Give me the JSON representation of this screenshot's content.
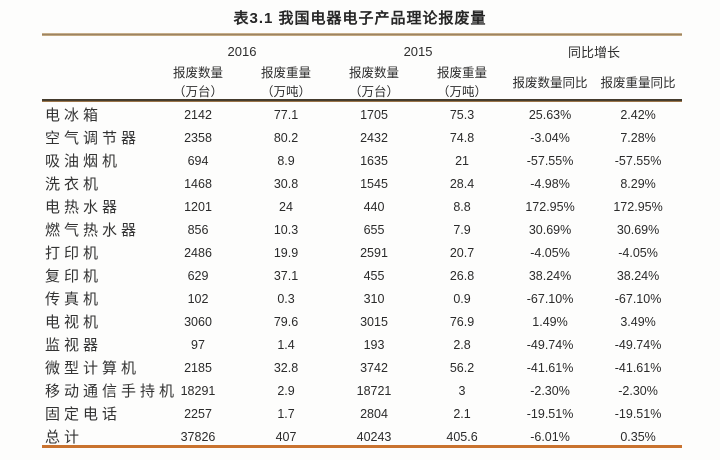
{
  "title": "表3.1 我国电器电子产品理论报废量",
  "colors": {
    "top_rule": "#c7a272",
    "header_rule_dark": "#433a2c",
    "header_rule_light": "#cf985c",
    "bottom_rule": "#c9732f",
    "text": "#2b2b2b"
  },
  "table": {
    "year_groups": [
      "2016",
      "2015",
      "同比增长"
    ],
    "sub_headers": [
      [
        "报废数量",
        "（万台）"
      ],
      [
        "报废重量",
        "（万吨）"
      ],
      [
        "报废数量",
        "（万台）"
      ],
      [
        "报废重量",
        "（万吨）"
      ],
      [
        "报废数量同比"
      ],
      [
        "报废重量同比"
      ]
    ],
    "rows": [
      {
        "name": "电冰箱",
        "values": [
          "2142",
          "77.1",
          "1705",
          "75.3",
          "25.63%",
          "2.42%"
        ]
      },
      {
        "name": "空气调节器",
        "values": [
          "2358",
          "80.2",
          "2432",
          "74.8",
          "-3.04%",
          "7.28%"
        ]
      },
      {
        "name": "吸油烟机",
        "values": [
          "694",
          "8.9",
          "1635",
          "21",
          "-57.55%",
          "-57.55%"
        ]
      },
      {
        "name": "洗衣机",
        "values": [
          "1468",
          "30.8",
          "1545",
          "28.4",
          "-4.98%",
          "8.29%"
        ]
      },
      {
        "name": "电热水器",
        "values": [
          "1201",
          "24",
          "440",
          "8.8",
          "172.95%",
          "172.95%"
        ]
      },
      {
        "name": "燃气热水器",
        "values": [
          "856",
          "10.3",
          "655",
          "7.9",
          "30.69%",
          "30.69%"
        ]
      },
      {
        "name": "打印机",
        "values": [
          "2486",
          "19.9",
          "2591",
          "20.7",
          "-4.05%",
          "-4.05%"
        ]
      },
      {
        "name": "复印机",
        "values": [
          "629",
          "37.1",
          "455",
          "26.8",
          "38.24%",
          "38.24%"
        ]
      },
      {
        "name": "传真机",
        "values": [
          "102",
          "0.3",
          "310",
          "0.9",
          "-67.10%",
          "-67.10%"
        ]
      },
      {
        "name": "电视机",
        "values": [
          "3060",
          "79.6",
          "3015",
          "76.9",
          "1.49%",
          "3.49%"
        ]
      },
      {
        "name": "监视器",
        "values": [
          "97",
          "1.4",
          "193",
          "2.8",
          "-49.74%",
          "-49.74%"
        ]
      },
      {
        "name": "微型计算机",
        "values": [
          "2185",
          "32.8",
          "3742",
          "56.2",
          "-41.61%",
          "-41.61%"
        ]
      },
      {
        "name": "移动通信手持机",
        "values": [
          "18291",
          "2.9",
          "18721",
          "3",
          "-2.30%",
          "-2.30%"
        ]
      },
      {
        "name": "固定电话",
        "values": [
          "2257",
          "1.7",
          "2804",
          "2.1",
          "-19.51%",
          "-19.51%"
        ]
      },
      {
        "name": "总计",
        "values": [
          "37826",
          "407",
          "40243",
          "405.6",
          "-6.01%",
          "0.35%"
        ]
      }
    ]
  }
}
